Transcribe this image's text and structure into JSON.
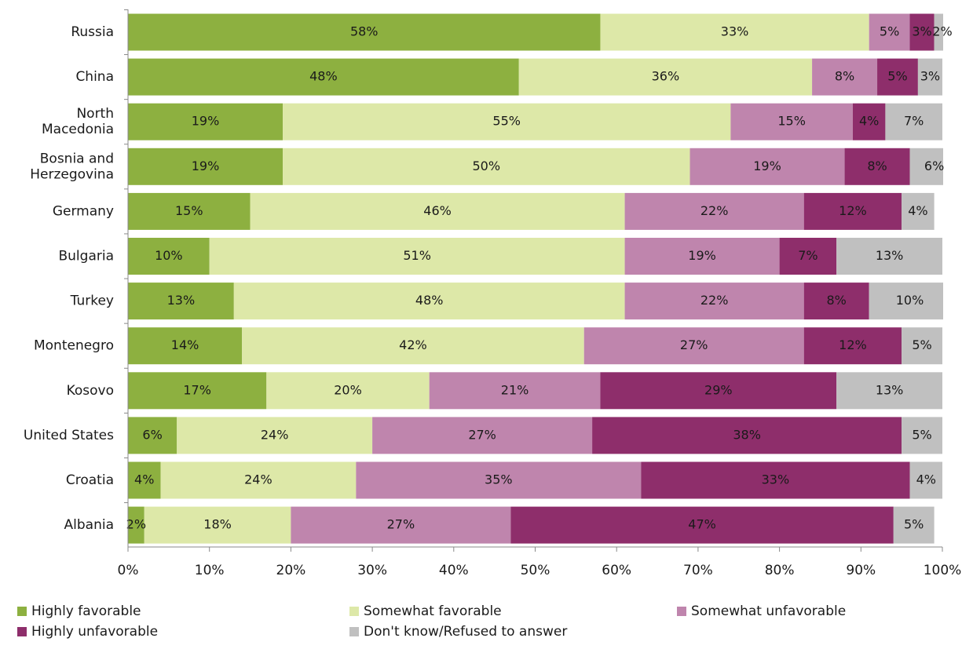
{
  "chart_data": {
    "type": "stacked-barh",
    "categories": [
      "Russia",
      "China",
      "North Macedonia",
      "Bosnia and Herzegovina",
      "Germany",
      "Bulgaria",
      "Turkey",
      "Montenegro",
      "Kosovo",
      "United States",
      "Croatia",
      "Albania"
    ],
    "series": [
      {
        "name": "Highly favorable",
        "color": "#8db040",
        "label_color": "#ffffff",
        "values": [
          58,
          48,
          19,
          19,
          15,
          10,
          13,
          14,
          17,
          6,
          4,
          2
        ],
        "value_labels": [
          "58%",
          "48%",
          "19%",
          "19%",
          "15%",
          "10%",
          "13%",
          "14%",
          "17%",
          "6%",
          "4%",
          "2%"
        ]
      },
      {
        "name": "Somewhat favorable",
        "color": "#dde8a8",
        "label_color": "#1a1a1a",
        "values": [
          33,
          36,
          55,
          50,
          46,
          51,
          48,
          42,
          20,
          24,
          24,
          18
        ],
        "value_labels": [
          "33%",
          "36%",
          "55%",
          "50%",
          "46%",
          "51%",
          "48%",
          "42%",
          "20%",
          "24%",
          "24%",
          "18%"
        ]
      },
      {
        "name": "Somewhat unfavorable",
        "color": "#bf85ad",
        "label_color": "#ffffff",
        "values": [
          5,
          8,
          15,
          19,
          22,
          19,
          22,
          27,
          21,
          27,
          35,
          27
        ],
        "value_labels": [
          "5%",
          "8%",
          "15%",
          "19%",
          "22%",
          "19%",
          "22%",
          "27%",
          "21%",
          "27%",
          "35%",
          "27%"
        ]
      },
      {
        "name": "Highly unfavorable",
        "color": "#8e2e6b",
        "label_color": "#ffffff",
        "values": [
          3,
          5,
          4,
          8,
          12,
          7,
          8,
          12,
          29,
          38,
          33,
          47
        ],
        "value_labels": [
          "3%",
          "5%",
          "4%",
          "8%",
          "12%",
          "7%",
          "8%",
          "12%",
          "29%",
          "38%",
          "33%",
          "47%"
        ]
      },
      {
        "name": "Don't know/Refused to answer",
        "color": "#c0c0c0",
        "label_color": "#1a1a1a",
        "values": [
          2,
          3,
          7,
          6,
          4,
          13,
          10,
          5,
          13,
          5,
          4,
          5
        ],
        "value_labels": [
          "2%",
          "3%",
          "7%",
          "6%",
          "4%",
          "13%",
          "10%",
          "5%",
          "13%",
          "5%",
          "4%",
          "5%"
        ]
      }
    ],
    "xlim": [
      0,
      100
    ],
    "xticks": [
      {
        "value": 0,
        "label": "0%"
      },
      {
        "value": 10,
        "label": "10%"
      },
      {
        "value": 20,
        "label": "20%"
      },
      {
        "value": 30,
        "label": "30%"
      },
      {
        "value": 40,
        "label": "40%"
      },
      {
        "value": 50,
        "label": "50%"
      },
      {
        "value": 60,
        "label": "60%"
      },
      {
        "value": 70,
        "label": "70%"
      },
      {
        "value": 80,
        "label": "80%"
      },
      {
        "value": 90,
        "label": "90%"
      },
      {
        "value": 100,
        "label": "100%"
      }
    ],
    "legend": "bottom"
  }
}
